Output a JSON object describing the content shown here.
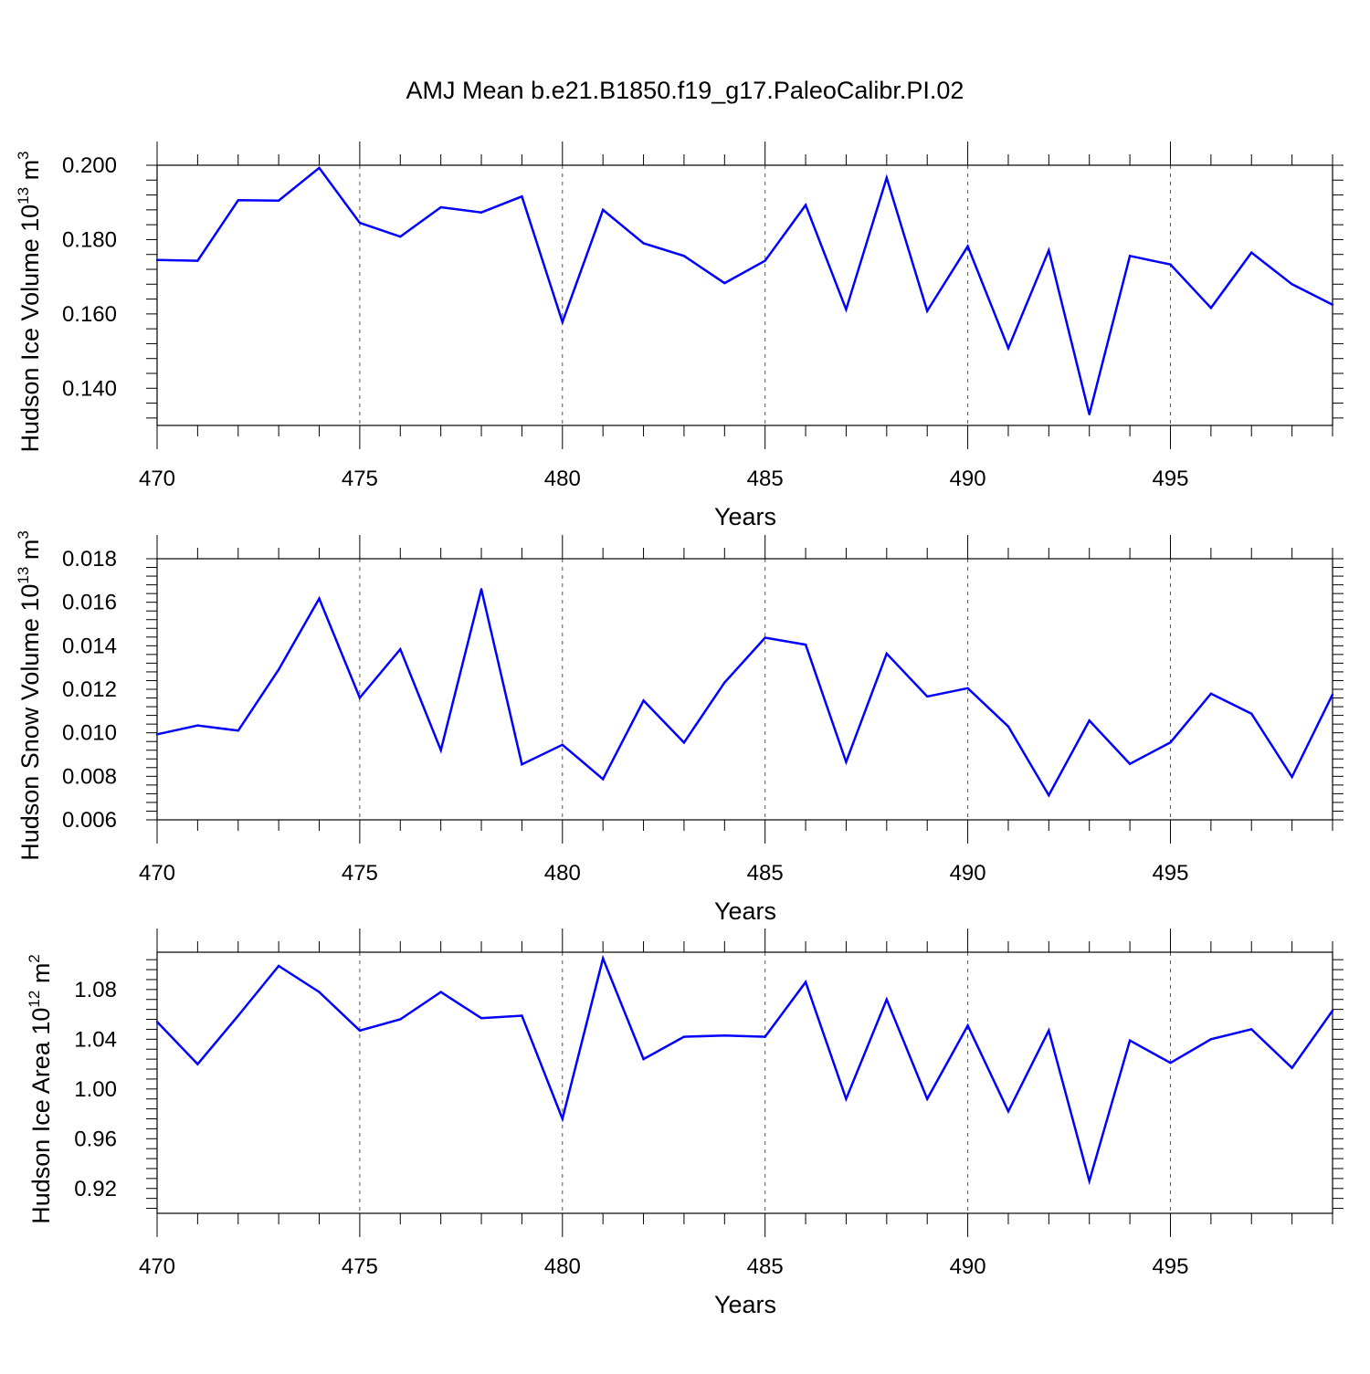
{
  "title": "AMJ Mean b.e21.B1850.f19_g17.PaleoCalibr.PI.02",
  "colors": {
    "line": "#0000ff",
    "axis": "#000000",
    "grid": "#555555"
  },
  "chart_data": [
    {
      "type": "line",
      "xlabel": "Years",
      "ylabel": "Hudson Ice Volume 10",
      "ylabel_sup": "13",
      "ylabel_unit": " m",
      "ylabel_unit_sup": "3",
      "xlim": [
        470,
        499
      ],
      "ylim": [
        0.13,
        0.2
      ],
      "xticks": [
        470,
        475,
        480,
        485,
        490,
        495
      ],
      "xtick_labels": [
        "470",
        "475",
        "480",
        "485",
        "490",
        "495"
      ],
      "yticks": [
        0.14,
        0.16,
        0.18,
        0.2
      ],
      "ytick_labels": [
        "0.140",
        "0.160",
        "0.180",
        "0.200"
      ],
      "grid": "dashed vertical at major x ticks",
      "x": [
        470,
        471,
        472,
        473,
        474,
        475,
        476,
        477,
        478,
        479,
        480,
        481,
        482,
        483,
        484,
        485,
        486,
        487,
        488,
        489,
        490,
        491,
        492,
        493,
        494,
        495,
        496,
        497,
        498,
        499
      ],
      "y": [
        0.1745,
        0.1743,
        0.1906,
        0.1905,
        0.1993,
        0.1845,
        0.1808,
        0.1887,
        0.1873,
        0.1916,
        0.1578,
        0.188,
        0.179,
        0.1756,
        0.1683,
        0.1743,
        0.1893,
        0.1612,
        0.1966,
        0.1608,
        0.1782,
        0.1508,
        0.1771,
        0.133,
        0.1756,
        0.1733,
        0.1616,
        0.1765,
        0.168,
        0.1625
      ]
    },
    {
      "type": "line",
      "xlabel": "Years",
      "ylabel": "Hudson Snow Volume 10",
      "ylabel_sup": "13",
      "ylabel_unit": " m",
      "ylabel_unit_sup": "3",
      "xlim": [
        470,
        499
      ],
      "ylim": [
        0.006,
        0.018
      ],
      "xticks": [
        470,
        475,
        480,
        485,
        490,
        495
      ],
      "xtick_labels": [
        "470",
        "475",
        "480",
        "485",
        "490",
        "495"
      ],
      "yticks": [
        0.006,
        0.008,
        0.01,
        0.012,
        0.014,
        0.016,
        0.018
      ],
      "ytick_labels": [
        "0.006",
        "0.008",
        "0.010",
        "0.012",
        "0.014",
        "0.016",
        "0.018"
      ],
      "grid": "dashed vertical at major x ticks",
      "x": [
        470,
        471,
        472,
        473,
        474,
        475,
        476,
        477,
        478,
        479,
        480,
        481,
        482,
        483,
        484,
        485,
        486,
        487,
        488,
        489,
        490,
        491,
        492,
        493,
        494,
        495,
        496,
        497,
        498,
        499
      ],
      "y": [
        0.00993,
        0.01034,
        0.0101,
        0.0129,
        0.01617,
        0.01161,
        0.01384,
        0.0092,
        0.0166,
        0.00855,
        0.00945,
        0.00787,
        0.01148,
        0.00955,
        0.01231,
        0.01437,
        0.01405,
        0.00866,
        0.01364,
        0.01167,
        0.01205,
        0.01029,
        0.00713,
        0.01056,
        0.00857,
        0.00956,
        0.0118,
        0.01088,
        0.00797,
        0.01176
      ]
    },
    {
      "type": "line",
      "xlabel": "Years",
      "ylabel": "Hudson Ice Area 10",
      "ylabel_sup": "12",
      "ylabel_unit": " m",
      "ylabel_unit_sup": "2",
      "xlim": [
        470,
        499
      ],
      "ylim": [
        0.9,
        1.11
      ],
      "xticks": [
        470,
        475,
        480,
        485,
        490,
        495
      ],
      "xtick_labels": [
        "470",
        "475",
        "480",
        "485",
        "490",
        "495"
      ],
      "yticks": [
        0.92,
        0.96,
        1.0,
        1.04,
        1.08
      ],
      "ytick_labels": [
        "0.92",
        "0.96",
        "1.00",
        "1.04",
        "1.08"
      ],
      "grid": "dashed vertical at major x ticks",
      "x": [
        470,
        471,
        472,
        473,
        474,
        475,
        476,
        477,
        478,
        479,
        480,
        481,
        482,
        483,
        484,
        485,
        486,
        487,
        488,
        489,
        490,
        491,
        492,
        493,
        494,
        495,
        496,
        497,
        498,
        499
      ],
      "y": [
        1.054,
        1.02,
        1.059,
        1.099,
        1.078,
        1.047,
        1.056,
        1.078,
        1.057,
        1.059,
        0.976,
        1.105,
        1.024,
        1.042,
        1.043,
        1.042,
        1.086,
        0.992,
        1.072,
        0.992,
        1.051,
        0.982,
        1.047,
        0.926,
        1.039,
        1.021,
        1.04,
        1.048,
        1.017,
        1.063
      ]
    }
  ]
}
